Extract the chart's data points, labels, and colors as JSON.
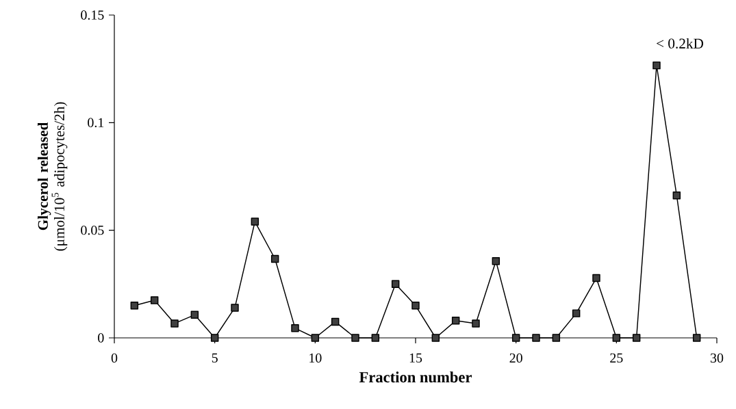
{
  "chart_data": {
    "type": "line",
    "xlabel": "Fraction number",
    "ylabel": "**Glycerol released** (μmol/10$^{5}$ adipocytes/2h)",
    "x": [
      1,
      2,
      3,
      4,
      5,
      6,
      7,
      8,
      9,
      10,
      11,
      12,
      13,
      14,
      15,
      16,
      17,
      18,
      19,
      20,
      21,
      22,
      23,
      24,
      25,
      26,
      27,
      28,
      29
    ],
    "series": [
      {
        "color": "#000000",
        "values": [
          0.015,
          0.0175,
          0.0067,
          0.0107,
          0,
          0.014,
          0.054,
          0.0367,
          0.0045,
          0,
          0.0075,
          0,
          0,
          0.025,
          0.015,
          0,
          0.008,
          0.0067,
          0.0357,
          0,
          0,
          0,
          0.0114,
          0.0278,
          0,
          0,
          0.1266,
          0.0662,
          0
        ]
      }
    ],
    "xlim": [
      0,
      30
    ],
    "xticks": [
      0,
      5,
      10,
      15,
      20,
      25,
      30
    ],
    "ylim": [
      0,
      0.15
    ],
    "yticks": [
      0,
      0.05,
      0.1,
      0.15
    ],
    "marker": "square",
    "line_style": "solid",
    "annotations": [
      {
        "text": "< 0.2kD",
        "x": 27,
        "y": 0.1266
      }
    ]
  }
}
